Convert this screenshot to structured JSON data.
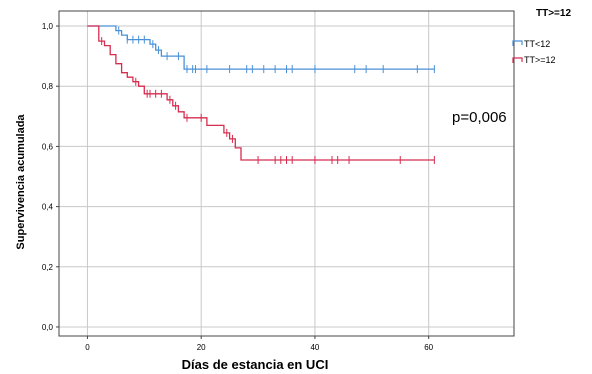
{
  "chart_data": {
    "type": "line",
    "xlabel": "Días de estancia en UCI",
    "ylabel": "Supervivencia acumulada",
    "xlim": [
      -5,
      75
    ],
    "ylim": [
      -0.03,
      1.05
    ],
    "xticks": [
      0,
      20,
      40,
      60
    ],
    "yticks": [
      0.0,
      0.2,
      0.4,
      0.6,
      0.8,
      1.0
    ],
    "xtick_labels": [
      "0",
      "20",
      "40",
      "60"
    ],
    "ytick_labels": [
      "0,0",
      "0,2",
      "0,4",
      "0,6",
      "0,8",
      "1,0"
    ],
    "grid": true,
    "legend": {
      "title": "TT>=12",
      "placement": "top-right",
      "entries": [
        "TT<12",
        "TT>=12"
      ]
    },
    "annotation": "p=0,006",
    "series": [
      {
        "name": "TT<12",
        "color": "#4a90d9",
        "steps": [
          [
            0,
            1.0
          ],
          [
            5,
            0.985
          ],
          [
            6,
            0.97
          ],
          [
            7,
            0.955
          ],
          [
            11,
            0.94
          ],
          [
            12,
            0.92
          ],
          [
            13,
            0.9
          ],
          [
            17,
            0.857
          ],
          [
            61,
            0.857
          ]
        ],
        "censored": [
          5.5,
          7,
          8,
          9,
          10,
          11.5,
          12.5,
          14,
          16,
          17.5,
          18.5,
          19,
          21,
          25,
          28,
          29,
          31,
          33,
          35,
          36,
          40,
          47,
          49,
          52,
          58,
          61
        ]
      },
      {
        "name": "TT>=12",
        "color": "#d62d4f",
        "steps": [
          [
            0,
            1.0
          ],
          [
            2,
            0.95
          ],
          [
            3,
            0.935
          ],
          [
            4,
            0.905
          ],
          [
            5,
            0.875
          ],
          [
            6,
            0.845
          ],
          [
            7,
            0.83
          ],
          [
            8,
            0.815
          ],
          [
            9,
            0.8
          ],
          [
            10,
            0.775
          ],
          [
            14,
            0.755
          ],
          [
            15,
            0.735
          ],
          [
            16,
            0.715
          ],
          [
            17,
            0.695
          ],
          [
            21,
            0.67
          ],
          [
            24,
            0.645
          ],
          [
            25,
            0.625
          ],
          [
            26,
            0.595
          ],
          [
            27,
            0.555
          ],
          [
            61,
            0.555
          ]
        ],
        "censored": [
          2.5,
          8.5,
          10.5,
          11,
          12,
          13,
          14.5,
          15.5,
          17.5,
          20,
          24.5,
          25.5,
          30,
          33,
          34,
          35,
          36,
          40,
          43,
          44,
          46,
          55,
          61
        ]
      }
    ]
  }
}
